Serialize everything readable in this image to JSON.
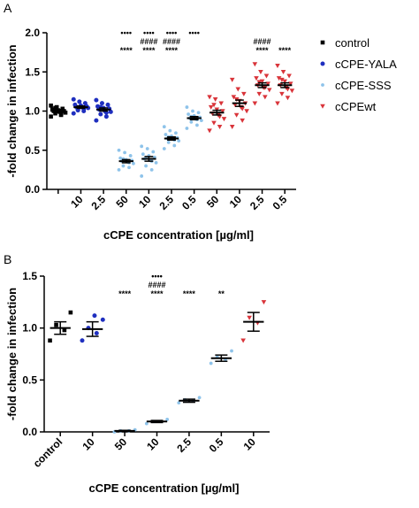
{
  "chart_data": [
    {
      "type": "dot",
      "panel": "A",
      "y_label": "-fold change in infection",
      "x_label": "cCPE concentration [µg/ml]",
      "ylim": [
        0,
        2
      ],
      "yticks": [
        {
          "value": 0,
          "label": "0.0"
        },
        {
          "value": 0.5,
          "label": "0.5"
        },
        {
          "value": 1,
          "label": "1.0"
        },
        {
          "value": 1.5,
          "label": "1.5"
        },
        {
          "value": 2,
          "label": "2.0"
        }
      ],
      "legend": "right",
      "series": [
        {
          "name": "control",
          "color": "#000000",
          "marker": "square",
          "categories": [
            null
          ],
          "means": [
            1.0
          ],
          "errors": [
            0.02
          ],
          "points": [
            [
              0.93,
              0.95,
              0.97,
              0.98,
              0.99,
              1.0,
              1.0,
              1.01,
              1.02,
              1.03,
              1.05,
              1.07,
              0.96,
              1.04
            ]
          ],
          "annotations": [
            []
          ]
        },
        {
          "name": "cCPE-YALA",
          "color": "#1f2fbf",
          "marker": "circle",
          "categories": [
            "10",
            "2.5"
          ],
          "means": [
            1.05,
            1.02
          ],
          "errors": [
            0.015,
            0.02
          ],
          "points": [
            [
              0.97,
              1.0,
              1.02,
              1.04,
              1.05,
              1.05,
              1.06,
              1.07,
              1.08,
              1.1,
              1.12,
              1.15,
              1.03,
              1.01
            ],
            [
              0.88,
              0.93,
              0.96,
              0.99,
              1.0,
              1.02,
              1.03,
              1.04,
              1.06,
              1.08,
              1.1,
              1.14,
              0.98,
              1.05
            ]
          ],
          "annotations": [
            [],
            []
          ]
        },
        {
          "name": "cCPE-SSS",
          "color": "#8ec3ea",
          "marker": "dot",
          "categories": [
            "50",
            "10",
            "2.5",
            "0.5"
          ],
          "means": [
            0.36,
            0.39,
            0.65,
            0.91
          ],
          "errors": [
            0.02,
            0.03,
            0.02,
            0.02
          ],
          "points": [
            [
              0.25,
              0.28,
              0.3,
              0.33,
              0.35,
              0.36,
              0.37,
              0.38,
              0.4,
              0.43,
              0.47,
              0.5,
              0.34,
              0.39
            ],
            [
              0.17,
              0.25,
              0.3,
              0.34,
              0.37,
              0.39,
              0.41,
              0.43,
              0.45,
              0.48,
              0.52,
              0.55,
              0.36,
              0.4
            ],
            [
              0.52,
              0.56,
              0.6,
              0.62,
              0.64,
              0.65,
              0.66,
              0.68,
              0.7,
              0.72,
              0.75,
              0.8,
              0.63,
              0.67
            ],
            [
              0.78,
              0.82,
              0.86,
              0.88,
              0.9,
              0.91,
              0.92,
              0.94,
              0.96,
              0.98,
              1.0,
              1.05,
              0.89,
              0.93
            ]
          ],
          "annotations": [
            [
              "••••",
              null,
              "****"
            ],
            [
              "••••",
              "####",
              "****"
            ],
            [
              "••••",
              "####",
              "****"
            ],
            [
              "••••"
            ]
          ]
        },
        {
          "name": "cCPEwt",
          "color": "#d9343a",
          "marker": "triangle-down",
          "categories": [
            "50",
            "10",
            "2.5",
            "0.5"
          ],
          "means": [
            0.98,
            1.1,
            1.33,
            1.33
          ],
          "errors": [
            0.03,
            0.04,
            0.03,
            0.03
          ],
          "points": [
            [
              0.75,
              0.8,
              0.85,
              0.9,
              0.95,
              0.97,
              1.0,
              1.02,
              1.05,
              1.1,
              1.15,
              1.18,
              0.93,
              1.08
            ],
            [
              0.8,
              0.88,
              0.95,
              1.0,
              1.05,
              1.08,
              1.1,
              1.13,
              1.18,
              1.22,
              1.28,
              1.4,
              1.03,
              1.15
            ],
            [
              1.1,
              1.18,
              1.22,
              1.27,
              1.3,
              1.33,
              1.35,
              1.38,
              1.42,
              1.45,
              1.5,
              1.6,
              1.3,
              1.37
            ],
            [
              1.1,
              1.17,
              1.22,
              1.26,
              1.3,
              1.33,
              1.35,
              1.38,
              1.42,
              1.45,
              1.5,
              1.58,
              1.28,
              1.4
            ]
          ],
          "annotations": [
            [],
            [],
            [
              null,
              "####",
              "****"
            ],
            [
              null,
              null,
              "****"
            ]
          ]
        }
      ]
    },
    {
      "type": "dot",
      "panel": "B",
      "y_label": "-fold change in infection",
      "x_label": "cCPE concentration [µg/ml]",
      "ylim": [
        0,
        1.5
      ],
      "yticks": [
        {
          "value": 0,
          "label": "0.0"
        },
        {
          "value": 0.5,
          "label": "0.5"
        },
        {
          "value": 1,
          "label": "1.0"
        },
        {
          "value": 1.5,
          "label": "1.5"
        }
      ],
      "series": [
        {
          "color": "#000000",
          "marker": "square",
          "categories": [
            "control"
          ],
          "means": [
            1.0
          ],
          "errors": [
            0.06
          ],
          "points": [
            [
              0.88,
              0.98,
              1.03,
              1.15
            ]
          ],
          "annotations": [
            []
          ]
        },
        {
          "color": "#1f2fbf",
          "marker": "circle",
          "categories": [
            "10"
          ],
          "means": [
            0.99
          ],
          "errors": [
            0.07
          ],
          "points": [
            [
              0.88,
              0.95,
              1.0,
              1.08,
              1.12
            ]
          ],
          "annotations": [
            []
          ]
        },
        {
          "color": "#8ec3ea",
          "marker": "dot",
          "categories": [
            "50",
            "10",
            "2.5",
            "0.5"
          ],
          "means": [
            0.01,
            0.1,
            0.3,
            0.71
          ],
          "errors": [
            0.005,
            0.01,
            0.015,
            0.03
          ],
          "points": [
            [
              0.0,
              0.01,
              0.01,
              0.02
            ],
            [
              0.08,
              0.1,
              0.1,
              0.12
            ],
            [
              0.28,
              0.3,
              0.31,
              0.33
            ],
            [
              0.66,
              0.7,
              0.72,
              0.78
            ]
          ],
          "annotations": [
            [
              null,
              null,
              "****"
            ],
            [
              "••••",
              "####",
              "****"
            ],
            [
              null,
              null,
              "****"
            ],
            [
              null,
              null,
              "**"
            ]
          ]
        },
        {
          "color": "#d9343a",
          "marker": "triangle-down",
          "categories": [
            "10"
          ],
          "means": [
            1.06
          ],
          "errors": [
            0.09
          ],
          "points": [
            [
              0.88,
              1.05,
              1.1,
              1.25
            ]
          ],
          "annotations": [
            []
          ]
        }
      ]
    }
  ]
}
